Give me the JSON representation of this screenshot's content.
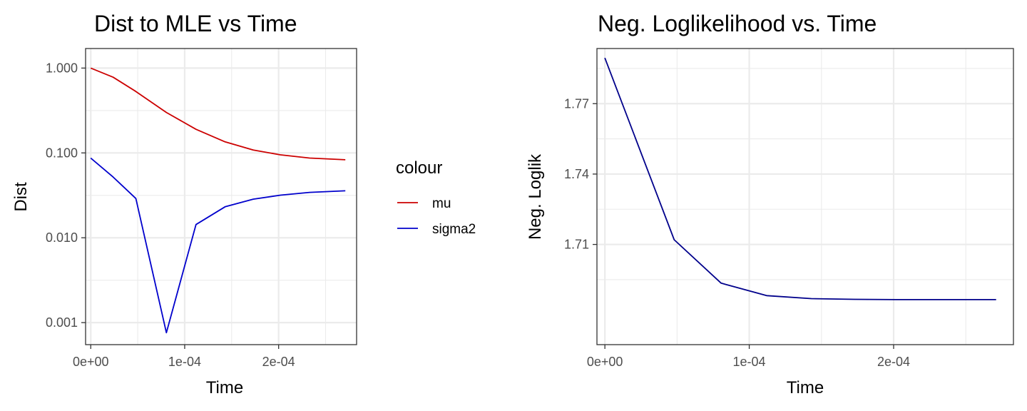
{
  "chart_data": [
    {
      "type": "line",
      "title": "Dist to MLE vs Time",
      "xlabel": "Time",
      "ylabel": "Dist",
      "yscale": "log10",
      "grid": true,
      "xlim": [
        -5.5e-06,
        0.000283
      ],
      "ylim": [
        0.00055,
        1.7
      ],
      "xticks": [
        0,
        0.0001,
        0.0002
      ],
      "xtick_labels": [
        "0e+00",
        "1e-04",
        "2e-04"
      ],
      "xminor": [
        5e-05,
        0.00015,
        0.00025
      ],
      "yticks": [
        1,
        0.1,
        0.01,
        0.001
      ],
      "ytick_labels": [
        "1.000",
        "0.100",
        "0.010",
        "0.001"
      ],
      "yminor": [
        0.316,
        0.0316,
        0.00316
      ],
      "legend": {
        "title": "colour",
        "position": "right"
      },
      "x": [
        0,
        2.38e-05,
        4.8e-05,
        8.05e-05,
        0.000112,
        0.000143,
        0.000173,
        0.000202,
        0.000233,
        0.000271
      ],
      "series": [
        {
          "name": "mu",
          "color": "#cc0000",
          "values": [
            1.0,
            0.78,
            0.53,
            0.3,
            0.19,
            0.135,
            0.108,
            0.095,
            0.087,
            0.083
          ]
        },
        {
          "name": "sigma2",
          "color": "#0000cc",
          "values": [
            0.087,
            0.052,
            0.029,
            0.00076,
            0.0143,
            0.0232,
            0.0285,
            0.0318,
            0.0343,
            0.0358
          ]
        }
      ]
    },
    {
      "type": "line",
      "title": "Neg. Loglikelihood vs. Time",
      "xlabel": "Time",
      "ylabel": "Neg. Loglik",
      "grid": true,
      "xlim": [
        -5.5e-06,
        0.000283
      ],
      "ylim": [
        1.6673,
        1.7935
      ],
      "xticks": [
        0,
        0.0001,
        0.0002
      ],
      "xtick_labels": [
        "0e+00",
        "1e-04",
        "2e-04"
      ],
      "xminor": [
        5e-05,
        0.00015,
        0.00025
      ],
      "yticks": [
        1.77,
        1.74,
        1.71
      ],
      "ytick_labels": [
        "1.77",
        "1.74",
        "1.71"
      ],
      "yminor": [
        1.785,
        1.755,
        1.725,
        1.695
      ],
      "x": [
        0,
        4.8e-05,
        8.05e-05,
        0.000112,
        0.000143,
        0.000173,
        0.000202,
        0.000233,
        0.000271
      ],
      "series": [
        {
          "color": "#00008b",
          "values": [
            1.7895,
            1.712,
            1.6935,
            1.6882,
            1.6869,
            1.6866,
            1.6865,
            1.6865,
            1.6865
          ]
        }
      ]
    }
  ]
}
